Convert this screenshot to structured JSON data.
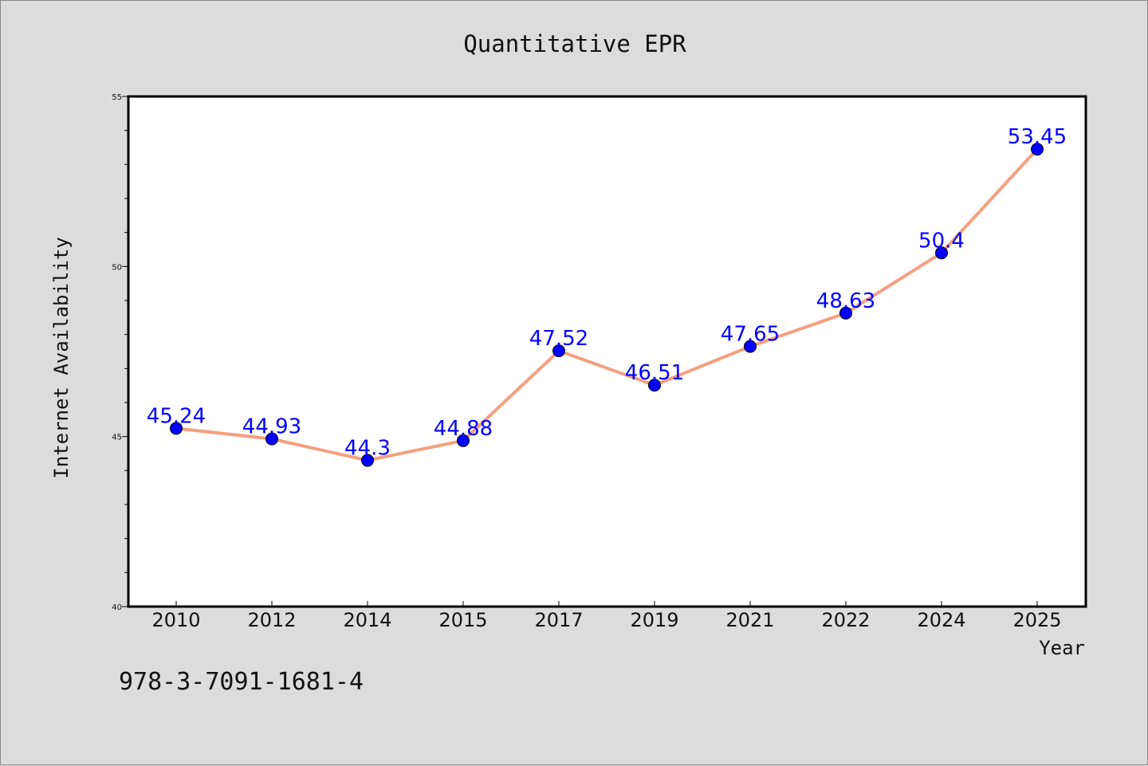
{
  "chart_data": {
    "type": "line",
    "title": "Quantitative EPR",
    "xlabel": "Year",
    "ylabel": "Internet Availability",
    "categories": [
      "2010",
      "2012",
      "2014",
      "2015",
      "2017",
      "2019",
      "2021",
      "2022",
      "2024",
      "2025"
    ],
    "series": [
      {
        "values": [
          45.24,
          44.93,
          44.3,
          44.88,
          47.52,
          46.51,
          47.65,
          48.63,
          50.4,
          53.45
        ],
        "line_color": "#f4a07e",
        "marker_color": "#0000ff"
      }
    ],
    "data_labels": [
      "45.24",
      "44.93",
      "44.3",
      "44.88",
      "47.52",
      "46.51",
      "47.65",
      "48.63",
      "50.4",
      "53.45"
    ],
    "ylim": [
      40,
      55
    ],
    "yticks": [
      "40",
      "45",
      "50",
      "55"
    ],
    "grid": false,
    "legend": "none",
    "label_color": "#0000ff"
  },
  "footer": {
    "isbn": "978-3-7091-1681-4"
  }
}
